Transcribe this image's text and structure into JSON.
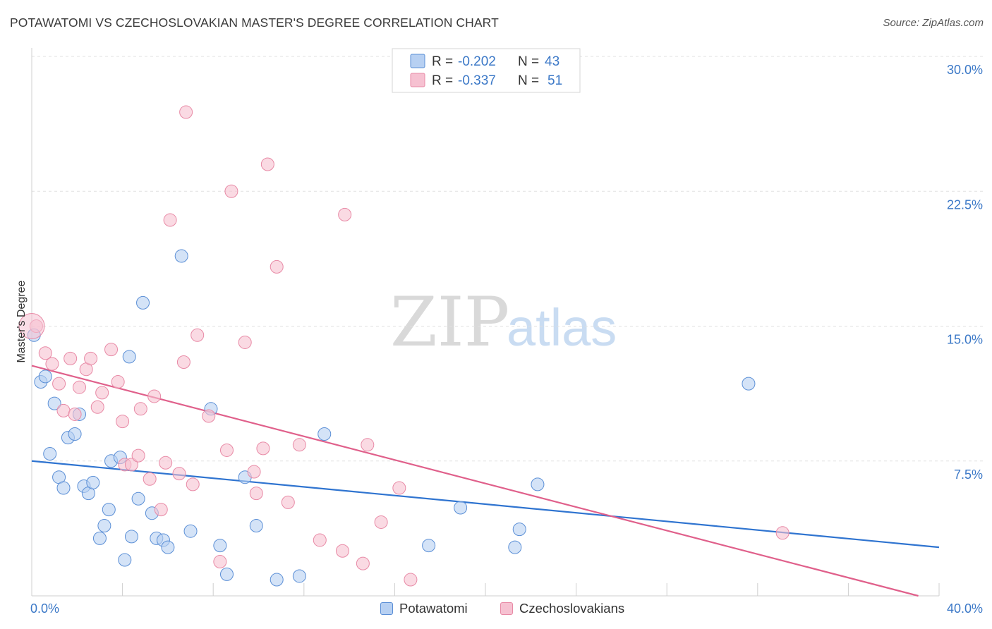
{
  "title": "POTAWATOMI VS CZECHOSLOVAKIAN MASTER'S DEGREE CORRELATION CHART",
  "source": "Source: ZipAtlas.com",
  "watermark": {
    "zip": "ZIP",
    "atlas": "atlas"
  },
  "legend_top": [
    {
      "r_label": "R =",
      "r_value": "-0.202",
      "n_label": "N =",
      "n_value": "43"
    },
    {
      "r_label": "R =",
      "r_value": "-0.337",
      "n_label": "N =",
      "n_value": "51"
    }
  ],
  "legend_bottom": [
    "Potawatomi",
    "Czechoslovakians"
  ],
  "chart_data": {
    "type": "scatter",
    "title": "POTAWATOMI VS CZECHOSLOVAKIAN MASTER'S DEGREE CORRELATION CHART",
    "xlabel": "",
    "ylabel": "Master's Degree",
    "xlim": [
      0,
      40
    ],
    "ylim": [
      0,
      30
    ],
    "x_tick_labels": [
      "0.0%",
      "40.0%"
    ],
    "y_ticks": [
      7.5,
      15.0,
      22.5,
      30.0
    ],
    "y_tick_labels": [
      "7.5%",
      "15.0%",
      "22.5%",
      "30.0%"
    ],
    "grid": "horizontal dashed",
    "series": [
      {
        "name": "Potawatomi",
        "color": "#5b8fd6",
        "fill": "#b7d0f2",
        "line_color": "#2f74d0",
        "r": -0.202,
        "n": 43,
        "trend": [
          [
            0,
            7.5
          ],
          [
            40,
            2.7
          ]
        ],
        "points": [
          [
            0.1,
            14.5
          ],
          [
            0.4,
            11.9
          ],
          [
            0.6,
            12.2
          ],
          [
            0.8,
            7.9
          ],
          [
            1.0,
            10.7
          ],
          [
            1.2,
            6.6
          ],
          [
            1.4,
            6.0
          ],
          [
            1.6,
            8.8
          ],
          [
            1.9,
            9.0
          ],
          [
            2.1,
            10.1
          ],
          [
            2.3,
            6.1
          ],
          [
            2.5,
            5.7
          ],
          [
            2.7,
            6.3
          ],
          [
            3.0,
            3.2
          ],
          [
            3.2,
            3.9
          ],
          [
            3.4,
            4.8
          ],
          [
            3.5,
            7.5
          ],
          [
            3.9,
            7.7
          ],
          [
            4.1,
            2.0
          ],
          [
            4.3,
            13.3
          ],
          [
            4.4,
            3.3
          ],
          [
            4.7,
            5.4
          ],
          [
            4.9,
            16.3
          ],
          [
            5.3,
            4.6
          ],
          [
            5.5,
            3.2
          ],
          [
            5.8,
            3.1
          ],
          [
            6.0,
            2.7
          ],
          [
            6.6,
            18.9
          ],
          [
            7.0,
            3.6
          ],
          [
            7.9,
            10.4
          ],
          [
            8.3,
            2.8
          ],
          [
            8.6,
            1.2
          ],
          [
            9.4,
            6.6
          ],
          [
            9.9,
            3.9
          ],
          [
            10.8,
            0.9
          ],
          [
            11.8,
            1.1
          ],
          [
            12.9,
            9.0
          ],
          [
            17.5,
            2.8
          ],
          [
            18.9,
            4.9
          ],
          [
            21.3,
            2.7
          ],
          [
            21.5,
            3.7
          ],
          [
            22.3,
            6.2
          ],
          [
            31.6,
            11.8
          ]
        ]
      },
      {
        "name": "Czechoslovakians",
        "color": "#e88aa6",
        "fill": "#f6c1d1",
        "line_color": "#e0608b",
        "r": -0.337,
        "n": 51,
        "trend": [
          [
            0,
            12.8
          ],
          [
            40,
            -0.3
          ]
        ],
        "points": [
          [
            0.2,
            15.0
          ],
          [
            0.6,
            13.5
          ],
          [
            0.9,
            12.9
          ],
          [
            1.2,
            11.8
          ],
          [
            1.4,
            10.3
          ],
          [
            1.7,
            13.2
          ],
          [
            1.9,
            10.1
          ],
          [
            2.1,
            11.6
          ],
          [
            2.4,
            12.6
          ],
          [
            2.6,
            13.2
          ],
          [
            2.9,
            10.5
          ],
          [
            3.1,
            11.3
          ],
          [
            3.5,
            13.7
          ],
          [
            3.8,
            11.9
          ],
          [
            4.0,
            9.7
          ],
          [
            4.1,
            7.3
          ],
          [
            4.4,
            7.3
          ],
          [
            4.7,
            7.8
          ],
          [
            4.8,
            10.4
          ],
          [
            5.2,
            6.5
          ],
          [
            5.4,
            11.1
          ],
          [
            5.7,
            4.8
          ],
          [
            5.9,
            7.4
          ],
          [
            6.5,
            6.8
          ],
          [
            6.7,
            13.0
          ],
          [
            7.1,
            6.2
          ],
          [
            7.3,
            14.5
          ],
          [
            7.8,
            10.0
          ],
          [
            8.3,
            1.9
          ],
          [
            8.6,
            8.1
          ],
          [
            8.8,
            22.5
          ],
          [
            9.4,
            14.1
          ],
          [
            9.8,
            6.9
          ],
          [
            9.9,
            5.7
          ],
          [
            10.2,
            8.2
          ],
          [
            10.4,
            24.0
          ],
          [
            10.8,
            18.3
          ],
          [
            11.3,
            5.2
          ],
          [
            11.8,
            8.4
          ],
          [
            12.7,
            3.1
          ],
          [
            13.7,
            2.5
          ],
          [
            13.8,
            21.2
          ],
          [
            14.6,
            1.8
          ],
          [
            14.8,
            8.4
          ],
          [
            15.4,
            4.1
          ],
          [
            16.2,
            6.0
          ],
          [
            16.7,
            0.9
          ],
          [
            6.8,
            26.9
          ],
          [
            6.1,
            20.9
          ],
          [
            33.1,
            3.5
          ],
          [
            0.0,
            15.0
          ]
        ]
      }
    ]
  }
}
